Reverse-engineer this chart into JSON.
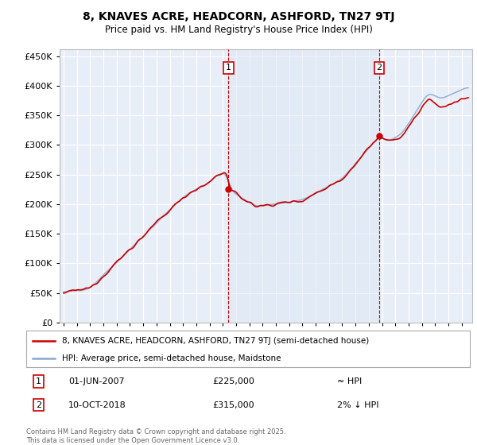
{
  "title": "8, KNAVES ACRE, HEADCORN, ASHFORD, TN27 9TJ",
  "subtitle": "Price paid vs. HM Land Registry's House Price Index (HPI)",
  "ytick_values": [
    0,
    50000,
    100000,
    150000,
    200000,
    250000,
    300000,
    350000,
    400000,
    450000
  ],
  "ylim": [
    0,
    462000
  ],
  "xlim_start": 1994.7,
  "xlim_end": 2025.8,
  "legend_line1": "8, KNAVES ACRE, HEADCORN, ASHFORD, TN27 9TJ (semi-detached house)",
  "legend_line2": "HPI: Average price, semi-detached house, Maidstone",
  "annotation1_label": "1",
  "annotation1_date": "01-JUN-2007",
  "annotation1_price": "£225,000",
  "annotation1_note": "≈ HPI",
  "annotation2_label": "2",
  "annotation2_date": "10-OCT-2018",
  "annotation2_price": "£315,000",
  "annotation2_note": "2% ↓ HPI",
  "footer": "Contains HM Land Registry data © Crown copyright and database right 2025.\nThis data is licensed under the Open Government Licence v3.0.",
  "sale1_x": 2007.42,
  "sale1_y": 225000,
  "sale2_x": 2018.78,
  "sale2_y": 315000,
  "line_color_red": "#cc0000",
  "line_color_blue": "#88aacc",
  "fill_color_blue": "#dde8f5",
  "background_color": "#e8eef8",
  "grid_color": "#ffffff",
  "annotation_line_color": "#cc0000",
  "annotation_box_color": "#cc0000"
}
